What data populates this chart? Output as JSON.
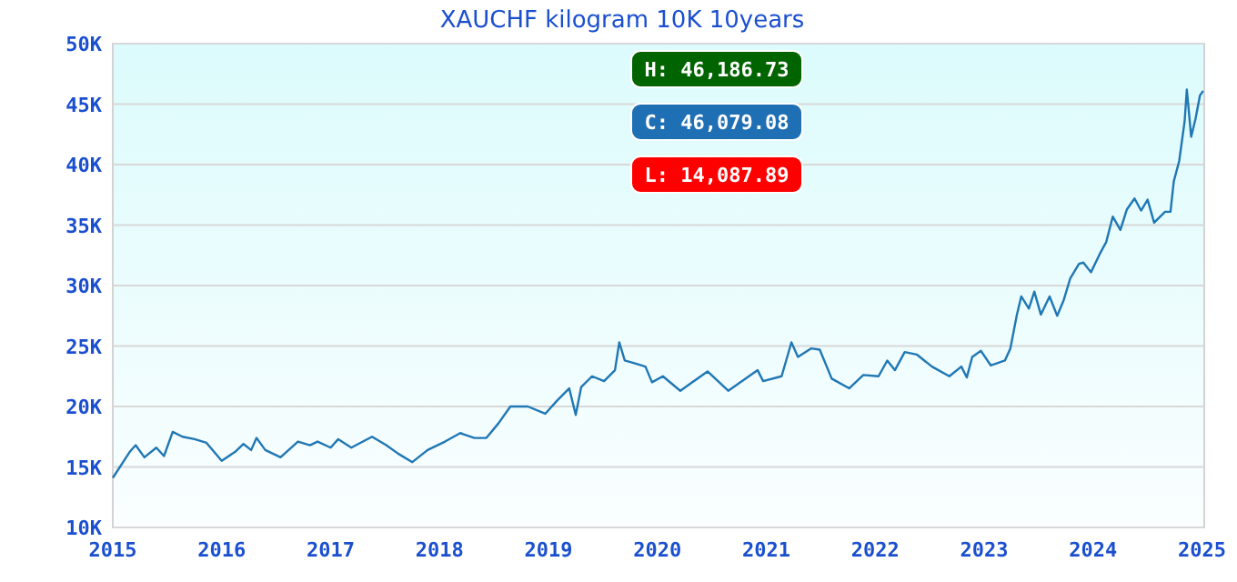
{
  "chart_data": {
    "type": "line",
    "title": "XAUCHF kilogram 10K 10years",
    "x": [
      2015.0,
      2015.16,
      2015.21,
      2015.29,
      2015.4,
      2015.47,
      2015.55,
      2015.64,
      2015.75,
      2015.86,
      2016.0,
      2016.13,
      2016.2,
      2016.27,
      2016.32,
      2016.4,
      2016.54,
      2016.7,
      2016.81,
      2016.88,
      2017.0,
      2017.07,
      2017.19,
      2017.38,
      2017.51,
      2017.62,
      2017.75,
      2017.89,
      2018.05,
      2018.19,
      2018.32,
      2018.43,
      2018.54,
      2018.65,
      2018.81,
      2018.97,
      2019.08,
      2019.19,
      2019.25,
      2019.3,
      2019.4,
      2019.51,
      2019.61,
      2019.65,
      2019.7,
      2019.78,
      2019.89,
      2019.95,
      2020.05,
      2020.21,
      2020.46,
      2020.65,
      2020.92,
      2020.97,
      2021.14,
      2021.23,
      2021.29,
      2021.41,
      2021.49,
      2021.6,
      2021.76,
      2021.89,
      2022.03,
      2022.11,
      2022.18,
      2022.27,
      2022.38,
      2022.52,
      2022.68,
      2022.79,
      2022.84,
      2022.89,
      2022.97,
      2023.06,
      2023.19,
      2023.24,
      2023.3,
      2023.34,
      2023.41,
      2023.46,
      2023.52,
      2023.6,
      2023.67,
      2023.73,
      2023.79,
      2023.87,
      2023.91,
      2023.98,
      2024.06,
      2024.12,
      2024.18,
      2024.25,
      2024.31,
      2024.38,
      2024.44,
      2024.5,
      2024.56,
      2024.66,
      2024.71,
      2024.74,
      2024.79,
      2024.84,
      2024.86,
      2024.9,
      2024.94,
      2024.98,
      2025.01
    ],
    "series": [
      {
        "color": "#1f77b4",
        "values": [
          14100,
          16300,
          16800,
          15800,
          16600,
          15900,
          17900,
          17500,
          17300,
          17000,
          15500,
          16300,
          16900,
          16400,
          17400,
          16400,
          15800,
          17100,
          16800,
          17100,
          16600,
          17300,
          16600,
          17500,
          16800,
          16100,
          15400,
          16400,
          17100,
          17800,
          17400,
          17400,
          18600,
          20000,
          20000,
          19400,
          20500,
          21500,
          19300,
          21600,
          22500,
          22100,
          23000,
          25300,
          23800,
          23600,
          23300,
          22000,
          22500,
          21300,
          22900,
          21300,
          23000,
          22100,
          22500,
          25300,
          24100,
          24800,
          24700,
          22300,
          21500,
          22600,
          22500,
          23800,
          23000,
          24500,
          24300,
          23300,
          22500,
          23300,
          22400,
          24100,
          24600,
          23400,
          23800,
          24800,
          27600,
          29100,
          28100,
          29500,
          27600,
          29100,
          27500,
          28800,
          30600,
          31800,
          31900,
          31100,
          32600,
          33600,
          35700,
          34600,
          36300,
          37200,
          36200,
          37100,
          35200,
          36100,
          36100,
          38600,
          40300,
          43600,
          46200,
          42300,
          43800,
          45700,
          46100
        ]
      }
    ],
    "xlim": [
      2015,
      2025.02
    ],
    "xticks": [
      2015,
      2016,
      2017,
      2018,
      2019,
      2020,
      2021,
      2022,
      2023,
      2024,
      2025
    ],
    "ylim": [
      10000,
      50000
    ],
    "yticks": [
      {
        "value": 10000,
        "label": "10K"
      },
      {
        "value": 15000,
        "label": "15K"
      },
      {
        "value": 20000,
        "label": "20K"
      },
      {
        "value": 25000,
        "label": "25K"
      },
      {
        "value": 30000,
        "label": "30K"
      },
      {
        "value": 35000,
        "label": "35K"
      },
      {
        "value": 40000,
        "label": "40K"
      },
      {
        "value": 45000,
        "label": "45K"
      },
      {
        "value": 50000,
        "label": "50K"
      }
    ],
    "grid": "y",
    "annotations": [
      "H: 46,186.73",
      "C: 46,079.08",
      "L: 14,087.89"
    ]
  }
}
